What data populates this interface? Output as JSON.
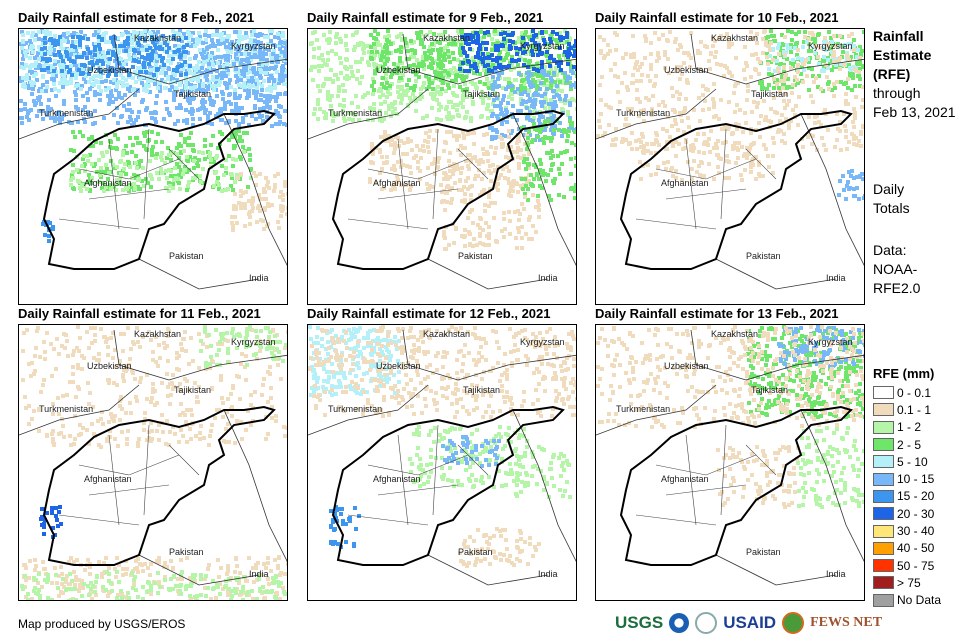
{
  "panels": [
    {
      "title": "Daily Rainfall estimate for 8 Feb., 2021",
      "intensity": "high-north"
    },
    {
      "title": "Daily Rainfall estimate for 9 Feb., 2021",
      "intensity": "high-northeast"
    },
    {
      "title": "Daily Rainfall estimate for 10 Feb., 2021",
      "intensity": "low"
    },
    {
      "title": "Daily Rainfall estimate for 11 Feb., 2021",
      "intensity": "low"
    },
    {
      "title": "Daily Rainfall estimate for 12 Feb., 2021",
      "intensity": "moderate"
    },
    {
      "title": "Daily Rainfall estimate for 13 Feb., 2021",
      "intensity": "northeast"
    }
  ],
  "map_labels": {
    "kazakhstan": "Kazakhstan",
    "kyrgyzstan": "Kyrgyzstan",
    "uzbekistan": "Uzbekistan",
    "tajikistan": "Tajikistan",
    "turkmenistan": "Turkmenistan",
    "afghanistan": "Afghanistan",
    "pakistan": "Pakistan",
    "india": "India"
  },
  "side": {
    "title1": "Rainfall",
    "title2": "Estimate",
    "title3": "(RFE)",
    "through": "through",
    "date": "Feb 13, 2021",
    "daily": "Daily",
    "totals": "Totals",
    "data": "Data:",
    "src1": "NOAA-",
    "src2": "RFE2.0"
  },
  "legend": {
    "title": "RFE (mm)",
    "items": [
      {
        "label": "0 - 0.1",
        "color": "#ffffff"
      },
      {
        "label": "0.1 - 1",
        "color": "#f0dcbc"
      },
      {
        "label": "1 - 2",
        "color": "#b4f5a8"
      },
      {
        "label": "2 - 5",
        "color": "#6ee66a"
      },
      {
        "label": "5 - 10",
        "color": "#b4f0f8"
      },
      {
        "label": "10 - 15",
        "color": "#78b8f8"
      },
      {
        "label": "15 - 20",
        "color": "#3c96f0"
      },
      {
        "label": "20 - 30",
        "color": "#1e64e6"
      },
      {
        "label": "30 - 40",
        "color": "#ffe678"
      },
      {
        "label": "40 - 50",
        "color": "#ffa000"
      },
      {
        "label": "50 - 75",
        "color": "#ff3200"
      },
      {
        "label": "> 75",
        "color": "#a01e1e"
      },
      {
        "label": "No Data",
        "color": "#a0a0a0"
      }
    ]
  },
  "credit": "Map produced by USGS/EROS",
  "logos": [
    "USGS",
    "NOAA",
    "USAID",
    "FEWS NET"
  ]
}
